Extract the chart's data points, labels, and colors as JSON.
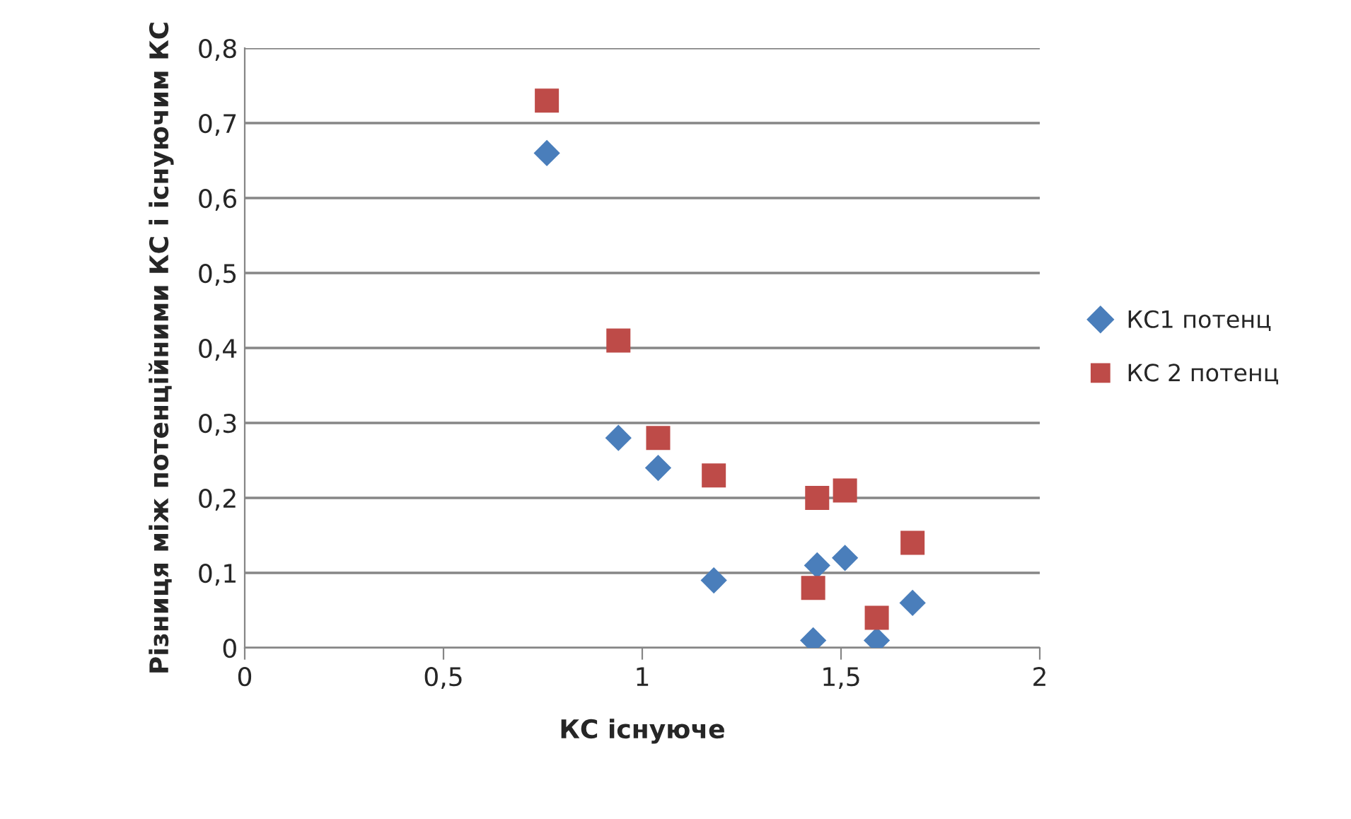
{
  "chart_data": {
    "type": "scatter",
    "xlabel": "КС існуюче",
    "ylabel": "Різниця між потенційними КС і існуючим КС",
    "xlim": [
      0,
      2
    ],
    "xticks": [
      0,
      {
        "value": 0.5,
        "label": "0,5"
      },
      1,
      {
        "value": 1.5,
        "label": "1,5"
      },
      2
    ],
    "ylim": [
      0,
      0.8
    ],
    "yticks": [
      0,
      {
        "value": 0.1,
        "label": "0,1"
      },
      {
        "value": 0.2,
        "label": "0,2"
      },
      {
        "value": 0.3,
        "label": "0,3"
      },
      {
        "value": 0.4,
        "label": "0,4"
      },
      {
        "value": 0.5,
        "label": "0,5"
      },
      {
        "value": 0.6,
        "label": "0,6"
      },
      {
        "value": 0.7,
        "label": "0,7"
      },
      {
        "value": 0.8,
        "label": "0,8"
      }
    ],
    "grid": "y",
    "legend": "right",
    "series": [
      {
        "name": "КС1 потенц",
        "color": "#4a7ebb",
        "marker": "diamond",
        "x": [
          0.76,
          0.94,
          1.04,
          1.18,
          1.44,
          1.51,
          1.43,
          1.59,
          1.68
        ],
        "values": [
          0.66,
          0.28,
          0.24,
          0.09,
          0.11,
          0.12,
          0.01,
          0.01,
          0.06
        ]
      },
      {
        "name": "КС 2 потенц",
        "color": "#be4b48",
        "marker": "square",
        "x": [
          0.76,
          0.94,
          1.04,
          1.18,
          1.44,
          1.51,
          1.43,
          1.59,
          1.68
        ],
        "values": [
          0.73,
          0.41,
          0.28,
          0.23,
          0.2,
          0.21,
          0.08,
          0.04,
          0.14
        ]
      }
    ]
  }
}
